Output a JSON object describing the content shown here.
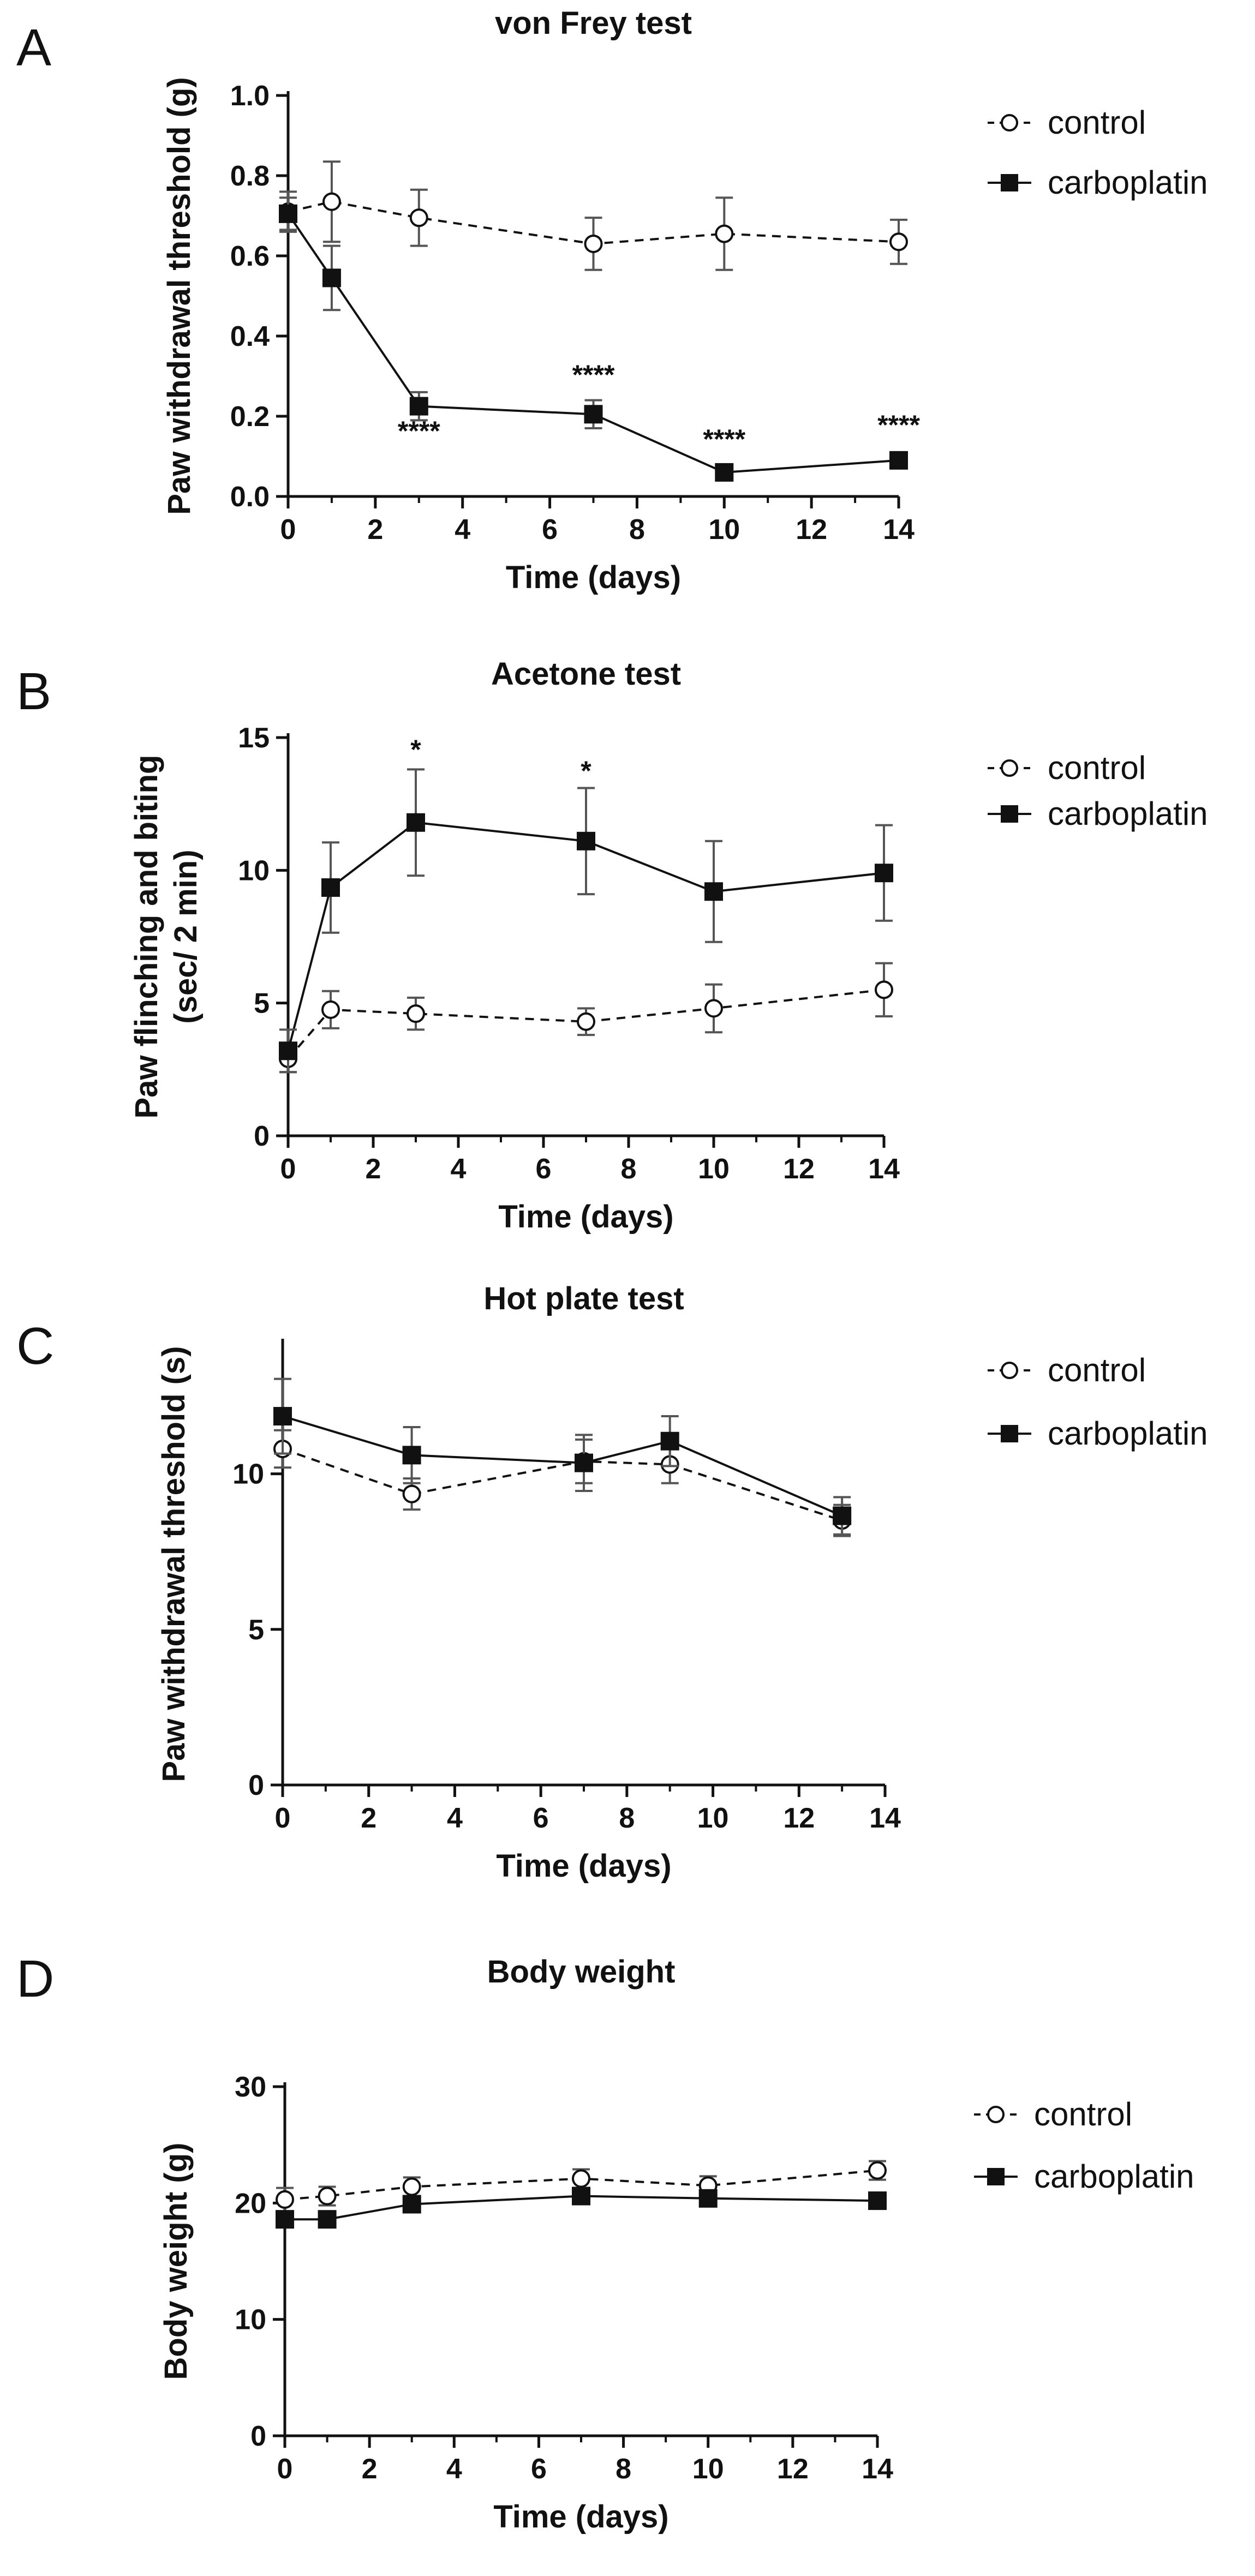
{
  "chart_data": [
    {
      "type": "line",
      "panel": "A",
      "title": "von Frey test",
      "xlabel": "Time (days)",
      "ylabel": "Paw withdrawal threshold (g)",
      "ylabel_lines": [
        "Paw withdrawal threshold (g)"
      ],
      "xlim": [
        0,
        14
      ],
      "ylim": [
        0,
        1.0
      ],
      "xticks": [
        "0",
        "2",
        "4",
        "6",
        "8",
        "10",
        "12",
        "14"
      ],
      "yticks": [
        "0.0",
        "0.2",
        "0.4",
        "0.6",
        "0.8",
        "1.0"
      ],
      "grid": false,
      "legend_position": "right",
      "series": [
        {
          "name": "control",
          "style": "dashed",
          "marker": "open-circle",
          "x": [
            0,
            1,
            3,
            7,
            10,
            14
          ],
          "y": [
            0.71,
            0.735,
            0.695,
            0.63,
            0.655,
            0.635
          ],
          "err": [
            0.05,
            0.1,
            0.07,
            0.065,
            0.09,
            0.055
          ]
        },
        {
          "name": "carboplatin",
          "style": "solid",
          "marker": "filled-square",
          "x": [
            0,
            1,
            3,
            7,
            10,
            14
          ],
          "y": [
            0.705,
            0.545,
            0.225,
            0.205,
            0.06,
            0.09
          ],
          "err": [
            0.04,
            0.08,
            0.035,
            0.035,
            0.015,
            0.02
          ]
        }
      ],
      "annotations": [
        {
          "text": "****",
          "x": 3,
          "y": 0.14
        },
        {
          "text": "****",
          "x": 7,
          "y": 0.28
        },
        {
          "text": "****",
          "x": 10,
          "y": 0.12
        },
        {
          "text": "****",
          "x": 14,
          "y": 0.155
        }
      ]
    },
    {
      "type": "line",
      "panel": "B",
      "title": "Acetone test",
      "xlabel": "Time (days)",
      "ylabel": "Paw flinching and biting (sec/ 2 min)",
      "ylabel_lines": [
        "Paw flinching and biting",
        "(sec/ 2 min)"
      ],
      "xlim": [
        0,
        14
      ],
      "ylim": [
        0,
        15
      ],
      "xticks": [
        "0",
        "2",
        "4",
        "6",
        "8",
        "10",
        "12",
        "14"
      ],
      "yticks": [
        "0",
        "5",
        "10",
        "15"
      ],
      "grid": false,
      "legend_position": "right",
      "series": [
        {
          "name": "control",
          "style": "dashed",
          "marker": "open-circle",
          "x": [
            0,
            1,
            3,
            7,
            10,
            14
          ],
          "y": [
            2.9,
            4.75,
            4.6,
            4.3,
            4.8,
            5.5
          ],
          "err": [
            0.5,
            0.7,
            0.6,
            0.5,
            0.9,
            1.0
          ]
        },
        {
          "name": "carboplatin",
          "style": "solid",
          "marker": "filled-square",
          "x": [
            0,
            1,
            3,
            7,
            10,
            14
          ],
          "y": [
            3.2,
            9.35,
            11.8,
            11.1,
            9.2,
            9.9
          ],
          "err": [
            0.8,
            1.7,
            2.0,
            2.0,
            1.9,
            1.8
          ]
        }
      ],
      "annotations": [
        {
          "text": "*",
          "x": 3,
          "y": 14.2
        },
        {
          "text": "*",
          "x": 7,
          "y": 13.4
        }
      ]
    },
    {
      "type": "line",
      "panel": "C",
      "title": "Hot plate test",
      "xlabel": "Time (days)",
      "ylabel": "Paw withdrawal threshold (s)",
      "ylabel_lines": [
        "Paw withdrawal threshold (s)"
      ],
      "xlim": [
        0,
        14
      ],
      "ylim": [
        0,
        14.2
      ],
      "xticks": [
        "0",
        "2",
        "4",
        "6",
        "8",
        "10",
        "12",
        "14"
      ],
      "yticks": [
        "0",
        "5",
        "10"
      ],
      "grid": false,
      "legend_position": "right",
      "series": [
        {
          "name": "control",
          "style": "dashed",
          "marker": "open-circle",
          "x": [
            0,
            3,
            7,
            9,
            13
          ],
          "y": [
            10.8,
            9.35,
            10.4,
            10.3,
            8.5
          ],
          "err": [
            0.6,
            0.5,
            0.7,
            0.6,
            0.5
          ]
        },
        {
          "name": "carboplatin",
          "style": "solid",
          "marker": "filled-square",
          "x": [
            0,
            3,
            7,
            9,
            13
          ],
          "y": [
            11.85,
            10.6,
            10.35,
            11.05,
            8.65
          ],
          "err": [
            1.2,
            0.9,
            0.9,
            0.8,
            0.6
          ]
        }
      ],
      "annotations": []
    },
    {
      "type": "line",
      "panel": "D",
      "title": "Body weight",
      "xlabel": "Time (days)",
      "ylabel": "Body weight (g)",
      "ylabel_lines": [
        "Body weight (g)"
      ],
      "xlim": [
        0,
        14
      ],
      "ylim": [
        0,
        30
      ],
      "xticks": [
        "0",
        "2",
        "4",
        "6",
        "8",
        "10",
        "12",
        "14"
      ],
      "yticks": [
        "0",
        "10",
        "20",
        "30"
      ],
      "grid": false,
      "legend_position": "right",
      "series": [
        {
          "name": "control",
          "style": "dashed",
          "marker": "open-circle",
          "x": [
            0,
            1,
            3,
            7,
            10,
            14
          ],
          "y": [
            20.3,
            20.6,
            21.4,
            22.1,
            21.5,
            22.8
          ],
          "err": [
            1.0,
            0.8,
            0.8,
            0.8,
            0.8,
            0.8
          ]
        },
        {
          "name": "carboplatin",
          "style": "solid",
          "marker": "filled-square",
          "x": [
            0,
            1,
            3,
            7,
            10,
            14
          ],
          "y": [
            18.6,
            18.6,
            19.9,
            20.6,
            20.4,
            20.2
          ],
          "err": [
            0.5,
            0.5,
            0.5,
            0.5,
            0.5,
            0.5
          ]
        }
      ],
      "annotations": []
    }
  ]
}
